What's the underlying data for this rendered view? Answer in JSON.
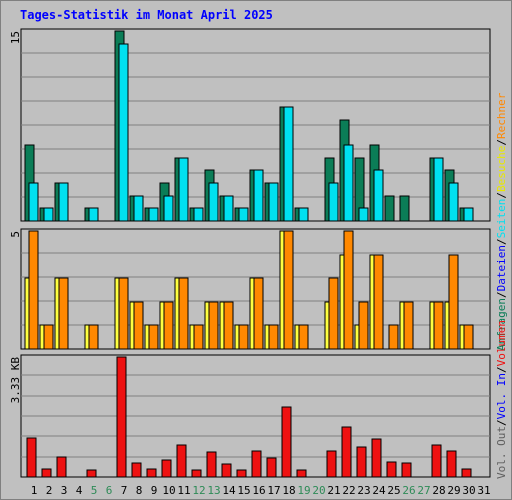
{
  "title": "Tages-Statistik im Monat April 2025",
  "colors": {
    "background": "#c0c0c0",
    "grid": "#808080",
    "anfragen": "#0b7d57",
    "dateien": "#00e0f0",
    "seiten": "#00e0f0",
    "besuche": "#ffff40",
    "rechner": "#ff8800",
    "volumen": "#ee1111",
    "weekday_label": "#000000",
    "weekend_label": "#2e8b57",
    "title": "#0000ff"
  },
  "chart_data": [
    {
      "type": "bar",
      "panel": "top",
      "x": [
        1,
        2,
        3,
        4,
        5,
        6,
        7,
        8,
        9,
        10,
        11,
        12,
        13,
        14,
        15,
        16,
        17,
        18,
        19,
        20,
        21,
        22,
        23,
        24,
        25,
        26,
        27,
        28,
        29,
        30,
        31
      ],
      "ymax_label": "15",
      "ylim": [
        0,
        15
      ],
      "grid": true,
      "series": [
        {
          "name": "Anfragen",
          "values": [
            6,
            1,
            3,
            0,
            1,
            0,
            15,
            2,
            1,
            3,
            5,
            1,
            4,
            2,
            1,
            4,
            3,
            9,
            1,
            0,
            5,
            8,
            5,
            6,
            2,
            2,
            0,
            5,
            4,
            1,
            0
          ]
        },
        {
          "name": "Dateien",
          "values": [
            3,
            1,
            3,
            0,
            1,
            0,
            14,
            2,
            1,
            2,
            5,
            1,
            3,
            2,
            1,
            4,
            3,
            9,
            1,
            0,
            3,
            6,
            1,
            4,
            0,
            0,
            0,
            5,
            3,
            1,
            0
          ]
        }
      ]
    },
    {
      "type": "bar",
      "panel": "middle",
      "x": [
        1,
        2,
        3,
        4,
        5,
        6,
        7,
        8,
        9,
        10,
        11,
        12,
        13,
        14,
        15,
        16,
        17,
        18,
        19,
        20,
        21,
        22,
        23,
        24,
        25,
        26,
        27,
        28,
        29,
        30,
        31
      ],
      "ymax_label": "5",
      "ylim": [
        0,
        5
      ],
      "grid": true,
      "series": [
        {
          "name": "Besuche",
          "values": [
            3,
            1,
            3,
            0,
            1,
            0,
            3,
            2,
            1,
            2,
            3,
            1,
            2,
            2,
            1,
            3,
            1,
            5,
            1,
            0,
            2,
            4,
            1,
            4,
            0,
            2,
            0,
            2,
            2,
            1,
            0
          ]
        },
        {
          "name": "Rechner",
          "values": [
            5,
            1,
            3,
            0,
            1,
            0,
            3,
            2,
            1,
            2,
            3,
            1,
            2,
            2,
            1,
            3,
            1,
            5,
            1,
            0,
            3,
            5,
            2,
            4,
            1,
            2,
            0,
            2,
            4,
            1,
            0
          ]
        }
      ]
    },
    {
      "type": "bar",
      "panel": "bottom",
      "x": [
        1,
        2,
        3,
        4,
        5,
        6,
        7,
        8,
        9,
        10,
        11,
        12,
        13,
        14,
        15,
        16,
        17,
        18,
        19,
        20,
        21,
        22,
        23,
        24,
        25,
        26,
        27,
        28,
        29,
        30,
        31
      ],
      "ymax_label": "3.33 KB",
      "ylim": [
        0,
        3.33
      ],
      "grid": true,
      "series": [
        {
          "name": "Volumen",
          "values": [
            1.07,
            0.23,
            0.55,
            0,
            0.2,
            0,
            3.33,
            0.38,
            0.23,
            0.47,
            0.88,
            0.2,
            0.7,
            0.37,
            0.2,
            0.72,
            0.52,
            1.95,
            0.2,
            0,
            0.72,
            1.38,
            0.84,
            1.06,
            0.43,
            0.4,
            0,
            0.88,
            0.72,
            0.23,
            0
          ]
        }
      ]
    }
  ],
  "days": [
    "1",
    "2",
    "3",
    "4",
    "5",
    "6",
    "7",
    "8",
    "9",
    "10",
    "11",
    "12",
    "13",
    "14",
    "15",
    "16",
    "17",
    "18",
    "19",
    "20",
    "21",
    "22",
    "23",
    "24",
    "25",
    "26",
    "27",
    "28",
    "29",
    "30",
    "31"
  ],
  "weekend_days": [
    5,
    6,
    12,
    13,
    19,
    20,
    26,
    27
  ],
  "right_legend_top": [
    {
      "text": "Anfragen",
      "color": "#0b7d57"
    },
    {
      "text": "/",
      "color": "#000000"
    },
    {
      "text": "Dateien",
      "color": "#0000ff"
    },
    {
      "text": "/",
      "color": "#000000"
    },
    {
      "text": "Seiten",
      "color": "#00e0f0"
    },
    {
      "text": "/",
      "color": "#000000"
    },
    {
      "text": "Besuche",
      "color": "#e8e800"
    },
    {
      "text": "/",
      "color": "#000000"
    },
    {
      "text": "Rechner",
      "color": "#ff8800"
    }
  ],
  "right_legend_bottom": [
    {
      "text": "Vol. Out",
      "color": "#606060"
    },
    {
      "text": "/",
      "color": "#000000"
    },
    {
      "text": "Vol. In",
      "color": "#0000ff"
    },
    {
      "text": "/",
      "color": "#000000"
    },
    {
      "text": "Volumen",
      "color": "#ee1111"
    }
  ]
}
